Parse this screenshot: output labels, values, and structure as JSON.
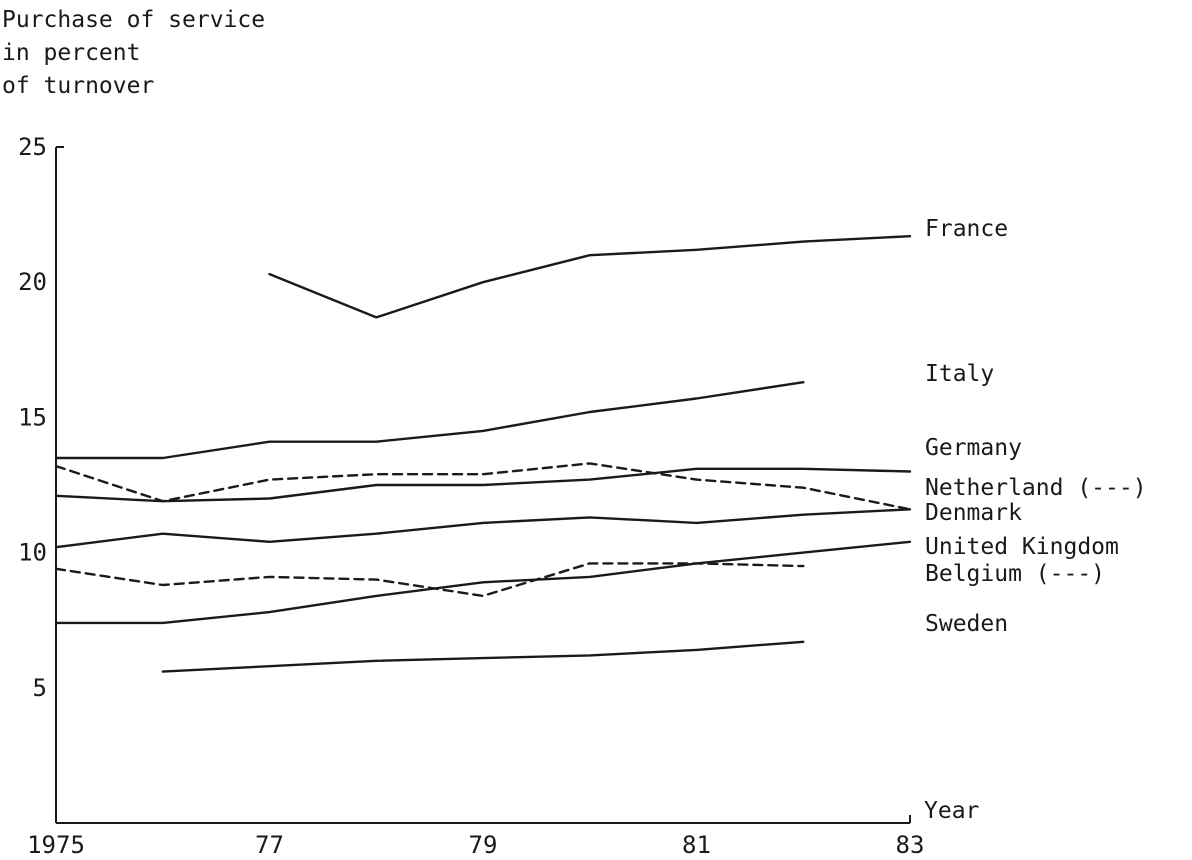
{
  "chart_data": {
    "type": "line",
    "title": "",
    "ylabel_lines": [
      "Purchase of service",
      "in percent",
      "of turnover"
    ],
    "xlabel": "Year",
    "xlim": [
      1975,
      1983
    ],
    "ylim": [
      0,
      25
    ],
    "x_ticks": [
      1975,
      1977,
      1979,
      1981,
      1983
    ],
    "x_tick_labels": [
      "1975",
      "77",
      "79",
      "81",
      "83"
    ],
    "y_ticks": [
      5,
      10,
      15,
      20,
      25
    ],
    "y_tick_labels": [
      "5",
      "10",
      "15",
      "20",
      "25"
    ],
    "grid": false,
    "series": [
      {
        "name": "France",
        "style": "solid",
        "points": [
          [
            1977,
            20.3
          ],
          [
            1978,
            18.7
          ],
          [
            1979,
            20.0
          ],
          [
            1980,
            21.0
          ],
          [
            1981,
            21.2
          ],
          [
            1982,
            21.5
          ],
          [
            1983,
            21.7
          ]
        ]
      },
      {
        "name": "Italy",
        "style": "solid",
        "points": [
          [
            1975,
            13.5
          ],
          [
            1976,
            13.5
          ],
          [
            1977,
            14.1
          ],
          [
            1978,
            14.1
          ],
          [
            1979,
            14.5
          ],
          [
            1980,
            15.2
          ],
          [
            1981,
            15.7
          ],
          [
            1982,
            16.3
          ]
        ]
      },
      {
        "name": "Germany",
        "style": "solid",
        "points": [
          [
            1975,
            12.1
          ],
          [
            1976,
            11.9
          ],
          [
            1977,
            12.0
          ],
          [
            1978,
            12.5
          ],
          [
            1979,
            12.5
          ],
          [
            1980,
            12.7
          ],
          [
            1981,
            13.1
          ],
          [
            1982,
            13.1
          ],
          [
            1983,
            13.0
          ]
        ]
      },
      {
        "name": "Netherland (---)",
        "style": "dashed",
        "points": [
          [
            1975,
            13.2
          ],
          [
            1976,
            11.9
          ],
          [
            1977,
            12.7
          ],
          [
            1978,
            12.9
          ],
          [
            1979,
            12.9
          ],
          [
            1980,
            13.3
          ],
          [
            1981,
            12.7
          ],
          [
            1982,
            12.4
          ],
          [
            1983,
            11.6
          ]
        ]
      },
      {
        "name": "Denmark",
        "style": "solid",
        "points": [
          [
            1975,
            10.2
          ],
          [
            1976,
            10.7
          ],
          [
            1977,
            10.4
          ],
          [
            1978,
            10.7
          ],
          [
            1979,
            11.1
          ],
          [
            1980,
            11.3
          ],
          [
            1981,
            11.1
          ],
          [
            1982,
            11.4
          ],
          [
            1983,
            11.6
          ]
        ]
      },
      {
        "name": "United Kingdom",
        "style": "solid",
        "points": [
          [
            1975,
            7.4
          ],
          [
            1976,
            7.4
          ],
          [
            1977,
            7.8
          ],
          [
            1978,
            8.4
          ],
          [
            1979,
            8.9
          ],
          [
            1980,
            9.1
          ],
          [
            1981,
            9.6
          ],
          [
            1982,
            10.0
          ],
          [
            1983,
            10.4
          ]
        ]
      },
      {
        "name": "Belgium (---)",
        "style": "dashed",
        "points": [
          [
            1975,
            9.4
          ],
          [
            1976,
            8.8
          ],
          [
            1977,
            9.1
          ],
          [
            1978,
            9.0
          ],
          [
            1979,
            8.4
          ],
          [
            1980,
            9.6
          ],
          [
            1981,
            9.6
          ],
          [
            1982,
            9.5
          ]
        ]
      },
      {
        "name": "Sweden",
        "style": "solid",
        "points": [
          [
            1976,
            5.6
          ],
          [
            1977,
            5.8
          ],
          [
            1978,
            6.0
          ],
          [
            1979,
            6.1
          ],
          [
            1980,
            6.2
          ],
          [
            1981,
            6.4
          ],
          [
            1982,
            6.7
          ]
        ]
      }
    ]
  }
}
